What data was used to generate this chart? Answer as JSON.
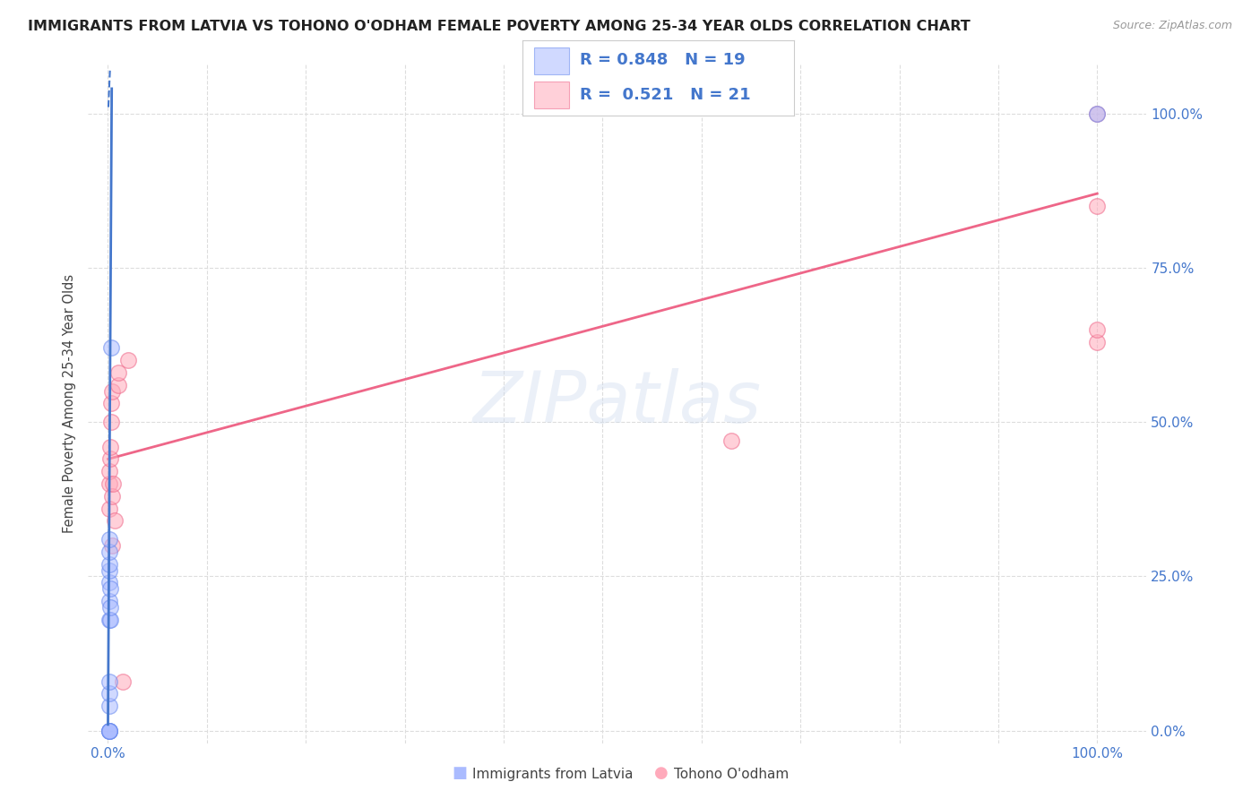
{
  "title": "IMMIGRANTS FROM LATVIA VS TOHONO O'ODHAM FEMALE POVERTY AMONG 25-34 YEAR OLDS CORRELATION CHART",
  "source": "Source: ZipAtlas.com",
  "ylabel": "Female Poverty Among 25-34 Year Olds",
  "background_color": "#ffffff",
  "blue_label": "Immigrants from Latvia",
  "pink_label": "Tohono O'odham",
  "blue_R": "0.848",
  "blue_N": "19",
  "pink_R": "0.521",
  "pink_N": "21",
  "blue_color": "#aabbff",
  "blue_edge_color": "#6688ee",
  "pink_color": "#ffaabb",
  "pink_edge_color": "#ee6688",
  "blue_line_color": "#4477cc",
  "pink_line_color": "#ee6688",
  "blue_scatter_x": [
    0.001,
    0.001,
    0.001,
    0.001,
    0.001,
    0.001,
    0.001,
    0.001,
    0.001,
    0.001,
    0.001,
    0.001,
    0.001,
    0.001,
    0.002,
    0.002,
    0.002,
    0.003,
    1.0
  ],
  "blue_scatter_y": [
    0.0,
    0.0,
    0.0,
    0.0,
    0.04,
    0.06,
    0.08,
    0.18,
    0.21,
    0.24,
    0.26,
    0.27,
    0.29,
    0.31,
    0.18,
    0.2,
    0.23,
    0.62,
    1.0
  ],
  "pink_scatter_x": [
    0.001,
    0.001,
    0.001,
    0.002,
    0.002,
    0.003,
    0.003,
    0.004,
    0.004,
    0.004,
    0.005,
    0.007,
    0.01,
    0.01,
    0.015,
    0.02,
    0.63,
    1.0,
    1.0,
    1.0,
    1.0
  ],
  "pink_scatter_y": [
    0.36,
    0.4,
    0.42,
    0.44,
    0.46,
    0.5,
    0.53,
    0.55,
    0.38,
    0.3,
    0.4,
    0.34,
    0.56,
    0.58,
    0.08,
    0.6,
    0.47,
    0.63,
    0.65,
    0.85,
    1.0
  ],
  "blue_trend_x0": 0.0,
  "blue_trend_y0": 0.01,
  "blue_trend_x1": 0.0038,
  "blue_trend_y1": 1.04,
  "pink_trend_x0": 0.0,
  "pink_trend_y0": 0.44,
  "pink_trend_x1": 1.0,
  "pink_trend_y1": 0.87,
  "ytick_values": [
    0.0,
    0.25,
    0.5,
    0.75,
    1.0
  ],
  "ytick_labels": [
    "0.0%",
    "25.0%",
    "50.0%",
    "75.0%",
    "100.0%"
  ],
  "xlim": [
    -0.02,
    1.05
  ],
  "ylim": [
    -0.02,
    1.08
  ],
  "grid_color": "#dddddd",
  "text_color": "#4477cc",
  "title_color": "#222222"
}
